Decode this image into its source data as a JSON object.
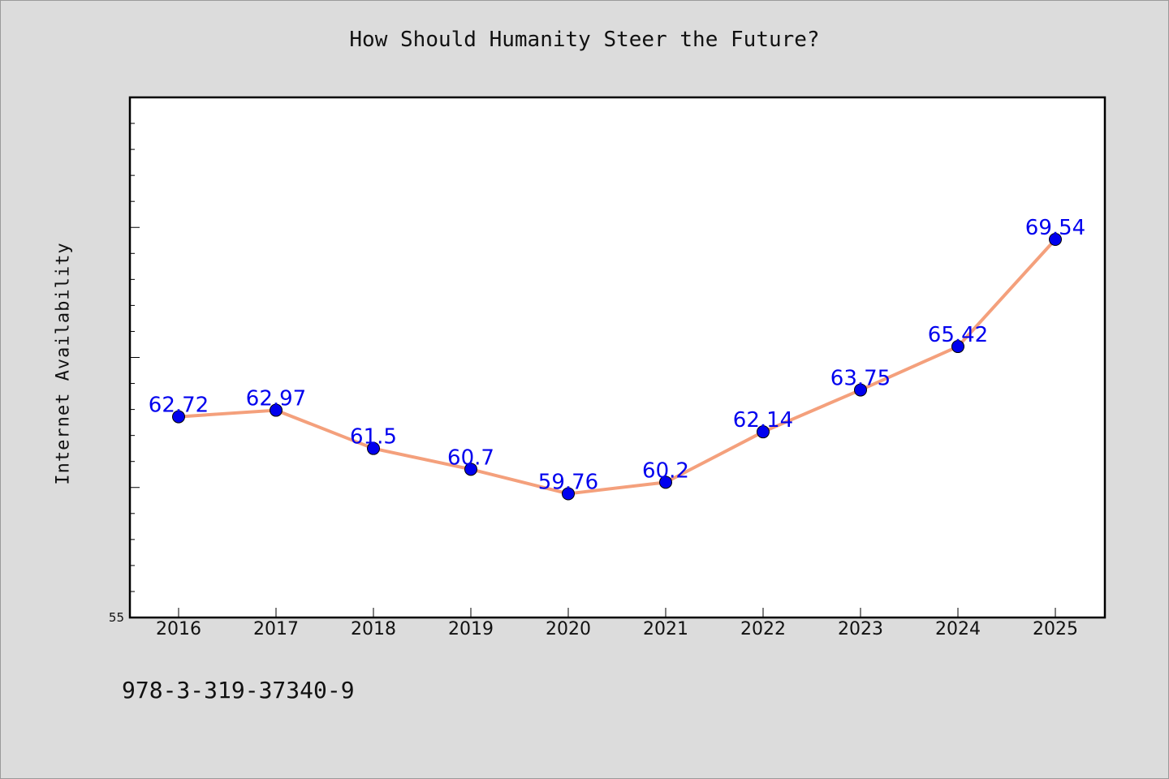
{
  "chart_data": {
    "type": "line",
    "title": "How Should Humanity Steer the Future?",
    "xlabel": "",
    "ylabel": "Internet Availability",
    "categories": [
      "2016",
      "2017",
      "2018",
      "2019",
      "2020",
      "2021",
      "2022",
      "2023",
      "2024",
      "2025"
    ],
    "series": [
      {
        "values": [
          62.72,
          62.97,
          61.5,
          60.7,
          59.76,
          60.2,
          62.14,
          63.75,
          65.42,
          69.54
        ]
      }
    ],
    "data_labels": [
      "62.72",
      "62.97",
      "61.5",
      "60.7",
      "59.76",
      "60.2",
      "62.14",
      "63.75",
      "65.42",
      "69.54"
    ],
    "ylim": [
      55,
      75
    ],
    "y_tick_labels": [
      "55"
    ],
    "grid": false,
    "colors": {
      "line": "#f4a07c",
      "marker": "#0000ee",
      "label": "#0000ee",
      "background": "#dcdcdc",
      "plot_background": "#ffffff"
    }
  },
  "footer": {
    "isbn": "978-3-319-37340-9"
  }
}
